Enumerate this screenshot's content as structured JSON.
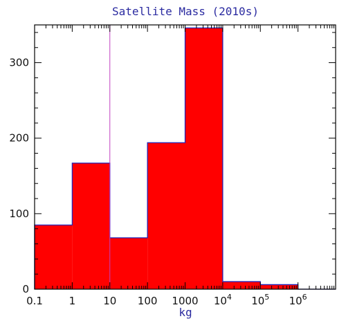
{
  "chart_data": {
    "type": "bar",
    "title": "Satellite Mass (2010s)",
    "xlabel": "kg",
    "ylabel": "",
    "x_scale": "log",
    "xlim": [
      0.1,
      10000000
    ],
    "ylim": [
      0,
      350
    ],
    "x_tick_labels": [
      {
        "value": 0.1,
        "label": "0.1"
      },
      {
        "value": 1,
        "label": "1"
      },
      {
        "value": 10,
        "label": "10"
      },
      {
        "value": 100,
        "label": "100"
      },
      {
        "value": 1000,
        "label": "1000"
      },
      {
        "value": 10000,
        "label": "10",
        "sup": "4"
      },
      {
        "value": 100000,
        "label": "10",
        "sup": "5"
      },
      {
        "value": 1000000,
        "label": "10",
        "sup": "6"
      }
    ],
    "y_ticks": [
      0,
      100,
      200,
      300
    ],
    "bins": [
      {
        "from": 0.1,
        "to": 1,
        "count": 85
      },
      {
        "from": 1,
        "to": 10,
        "count": 167
      },
      {
        "from": 10,
        "to": 100,
        "count": 68
      },
      {
        "from": 100,
        "to": 1000,
        "count": 194
      },
      {
        "from": 1000,
        "to": 10000,
        "count": 346
      },
      {
        "from": 10000,
        "to": 100000,
        "count": 10
      },
      {
        "from": 100000,
        "to": 1000000,
        "count": 6
      },
      {
        "from": 1000000,
        "to": 10000000,
        "count": 0
      }
    ],
    "reference_line_x": 10,
    "colors": {
      "bar_fill": "#ff0000",
      "bar_edge": "#2424b8",
      "reference_line": "#c040c0",
      "text": "#2a2aa0"
    }
  }
}
